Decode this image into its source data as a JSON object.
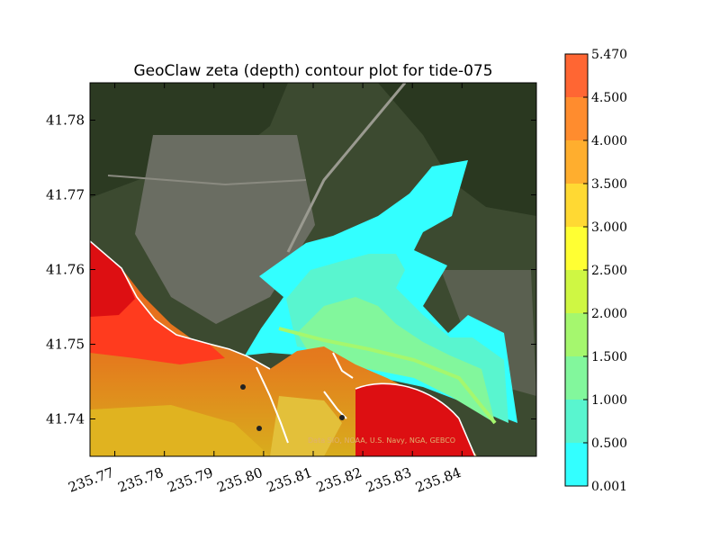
{
  "chart_data": {
    "type": "heatmap",
    "title": "GeoClaw zeta (depth) contour plot for tide-075",
    "xlabel": "",
    "ylabel": "",
    "xlim": [
      235.765,
      235.855
    ],
    "ylim": [
      41.735,
      41.785
    ],
    "x_ticks": [
      "235.77",
      "235.78",
      "235.79",
      "235.80",
      "235.81",
      "235.82",
      "235.83",
      "235.84"
    ],
    "y_ticks": [
      "41.78",
      "41.77",
      "41.76",
      "41.75",
      "41.74"
    ],
    "background": "satellite imagery",
    "credit_text": "Data SIO, NOAA, U.S. Navy, NGA, GEBCO",
    "colorbar": {
      "levels": [
        "0.001",
        "0.500",
        "1.000",
        "1.500",
        "2.000",
        "2.500",
        "3.000",
        "3.500",
        "4.000",
        "4.500",
        "5.470"
      ],
      "colors": [
        "#33ffff",
        "#59f5cf",
        "#82f79c",
        "#a5f76e",
        "#cff743",
        "#ffff33",
        "#ffd933",
        "#ffae2e",
        "#ff8c2e",
        "#ff6633",
        "#ff3333"
      ]
    }
  }
}
